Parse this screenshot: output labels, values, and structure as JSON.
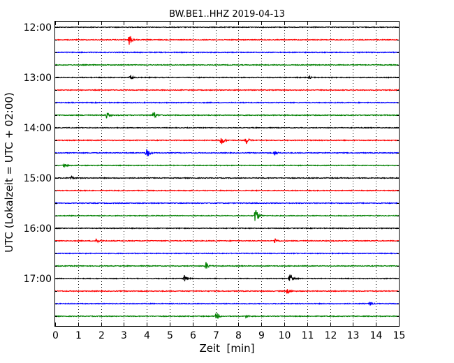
{
  "chart_data": {
    "type": "line",
    "title": "BW.BE1..HHZ 2019-04-13",
    "xlabel": "Zeit  [min]",
    "ylabel": "UTC (Lokalzeit = UTC + 02:00)",
    "xlim": [
      0,
      15
    ],
    "x_ticks": [
      "0",
      "1",
      "2",
      "3",
      "4",
      "5",
      "6",
      "7",
      "8",
      "9",
      "10",
      "11",
      "12",
      "13",
      "14",
      "15"
    ],
    "vertical_grid": "dotted at each minute",
    "row_interval_minutes": 15,
    "y_ticks": [
      "12:00",
      "13:00",
      "14:00",
      "15:00",
      "16:00",
      "17:00"
    ],
    "traces": [
      {
        "start": "12:00",
        "color": "#000000",
        "events": []
      },
      {
        "start": "12:15",
        "color": "#ff0000",
        "events": [
          {
            "t": 3.25,
            "amp": 1.0
          }
        ]
      },
      {
        "start": "12:30",
        "color": "#0000ff",
        "events": []
      },
      {
        "start": "12:45",
        "color": "#008000",
        "events": []
      },
      {
        "start": "13:00",
        "color": "#000000",
        "events": [
          {
            "t": 3.3,
            "amp": 0.4
          },
          {
            "t": 11.1,
            "amp": 0.2
          }
        ]
      },
      {
        "start": "13:15",
        "color": "#ff0000",
        "events": []
      },
      {
        "start": "13:30",
        "color": "#0000ff",
        "events": []
      },
      {
        "start": "13:45",
        "color": "#008000",
        "events": [
          {
            "t": 2.25,
            "amp": 0.6
          },
          {
            "t": 4.3,
            "amp": 0.8
          }
        ]
      },
      {
        "start": "14:00",
        "color": "#000000",
        "events": []
      },
      {
        "start": "14:15",
        "color": "#ff0000",
        "events": [
          {
            "t": 7.25,
            "amp": 1.0
          },
          {
            "t": 8.35,
            "amp": 0.6
          }
        ]
      },
      {
        "start": "14:30",
        "color": "#0000ff",
        "events": [
          {
            "t": 4.0,
            "amp": 1.1
          },
          {
            "t": 9.6,
            "amp": 0.4
          }
        ]
      },
      {
        "start": "14:45",
        "color": "#008000",
        "events": [
          {
            "t": 0.4,
            "amp": 0.3
          }
        ]
      },
      {
        "start": "15:00",
        "color": "#000000",
        "events": [
          {
            "t": 0.7,
            "amp": 0.3
          }
        ]
      },
      {
        "start": "15:15",
        "color": "#ff0000",
        "events": []
      },
      {
        "start": "15:30",
        "color": "#0000ff",
        "events": []
      },
      {
        "start": "15:45",
        "color": "#008000",
        "events": [
          {
            "t": 8.75,
            "amp": 1.5
          }
        ]
      },
      {
        "start": "16:00",
        "color": "#000000",
        "events": []
      },
      {
        "start": "16:15",
        "color": "#ff0000",
        "events": [
          {
            "t": 1.8,
            "amp": 0.5
          },
          {
            "t": 9.6,
            "amp": 0.4
          }
        ]
      },
      {
        "start": "16:30",
        "color": "#0000ff",
        "events": []
      },
      {
        "start": "16:45",
        "color": "#008000",
        "events": [
          {
            "t": 6.6,
            "amp": 0.7
          }
        ]
      },
      {
        "start": "17:00",
        "color": "#000000",
        "events": [
          {
            "t": 5.65,
            "amp": 0.6
          },
          {
            "t": 10.25,
            "amp": 1.3
          }
        ]
      },
      {
        "start": "17:15",
        "color": "#ff0000",
        "events": [
          {
            "t": 10.15,
            "amp": 0.6
          }
        ]
      },
      {
        "start": "17:30",
        "color": "#0000ff",
        "events": [
          {
            "t": 13.75,
            "amp": 0.3
          }
        ]
      },
      {
        "start": "17:45",
        "color": "#008000",
        "events": [
          {
            "t": 7.05,
            "amp": 0.6
          },
          {
            "t": 8.35,
            "amp": 0.3
          }
        ]
      }
    ]
  }
}
